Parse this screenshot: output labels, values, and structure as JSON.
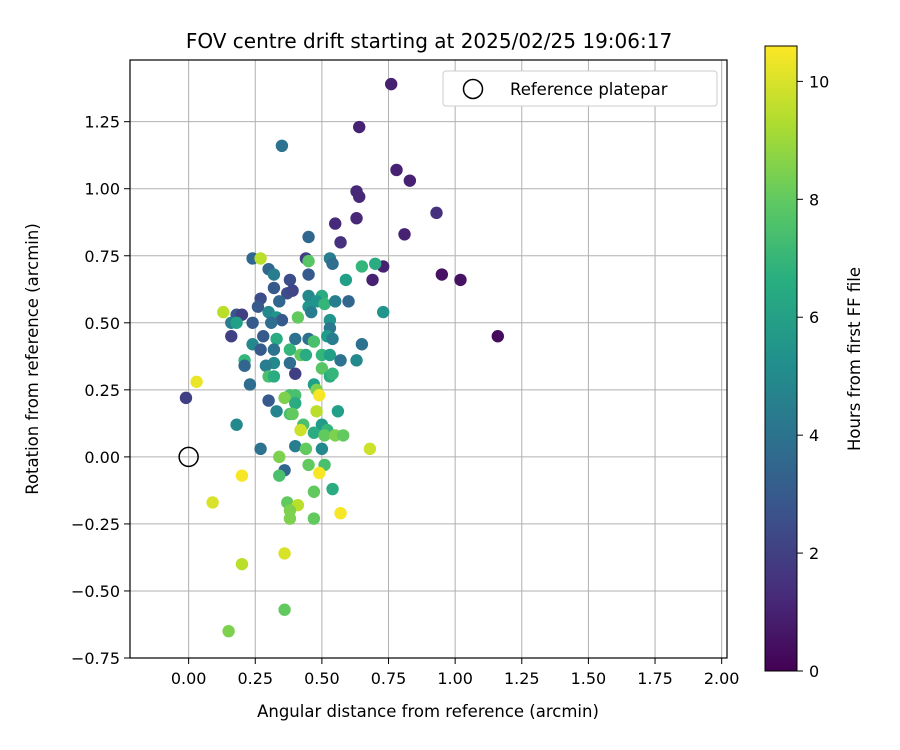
{
  "chart_data": {
    "type": "scatter",
    "title": "FOV centre drift starting at 2025/02/25 19:06:17",
    "xlabel": "Angular distance from reference (arcmin)",
    "ylabel": "Rotation from reference (arcmin)",
    "xlim": [
      -0.22,
      2.02
    ],
    "ylim": [
      -0.75,
      1.48
    ],
    "xticks": [
      "0.00",
      "0.25",
      "0.50",
      "0.75",
      "1.00",
      "1.25",
      "1.50",
      "1.75",
      "2.00"
    ],
    "yticks": [
      "−0.75",
      "−0.50",
      "−0.25",
      "0.00",
      "0.25",
      "0.50",
      "0.75",
      "1.00",
      "1.25"
    ],
    "xtick_values": [
      0,
      0.25,
      0.5,
      0.75,
      1.0,
      1.25,
      1.5,
      1.75,
      2.0
    ],
    "ytick_values": [
      -0.75,
      -0.5,
      -0.25,
      0,
      0.25,
      0.5,
      0.75,
      1.0,
      1.25
    ],
    "grid": true,
    "legend": {
      "placement": "top-right",
      "entries": [
        "Reference platepar"
      ]
    },
    "reference_point": {
      "x": 0.0,
      "y": 0.0
    },
    "colorbar": {
      "label": "Hours from first FF file",
      "min": 0,
      "max": 10.6,
      "ticks": [
        "0",
        "2",
        "4",
        "6",
        "8",
        "10"
      ],
      "tick_values": [
        0,
        2,
        4,
        6,
        8,
        10
      ],
      "colormap": "viridis"
    },
    "points": [
      {
        "x": 0.76,
        "y": 1.39,
        "h": 1.0
      },
      {
        "x": 0.64,
        "y": 1.23,
        "h": 1.0
      },
      {
        "x": 0.35,
        "y": 1.16,
        "h": 4.0
      },
      {
        "x": 0.78,
        "y": 1.07,
        "h": 1.0
      },
      {
        "x": 0.83,
        "y": 1.03,
        "h": 1.0
      },
      {
        "x": 0.63,
        "y": 0.99,
        "h": 1.2
      },
      {
        "x": 0.64,
        "y": 0.97,
        "h": 1.2
      },
      {
        "x": 0.93,
        "y": 0.91,
        "h": 1.5
      },
      {
        "x": 0.63,
        "y": 0.89,
        "h": 1.2
      },
      {
        "x": 0.55,
        "y": 0.87,
        "h": 1.3
      },
      {
        "x": 0.81,
        "y": 0.83,
        "h": 1.0
      },
      {
        "x": 0.45,
        "y": 0.82,
        "h": 3.5
      },
      {
        "x": 0.57,
        "y": 0.8,
        "h": 1.5
      },
      {
        "x": 0.24,
        "y": 0.74,
        "h": 3.5
      },
      {
        "x": 0.27,
        "y": 0.74,
        "h": 9.5
      },
      {
        "x": 0.44,
        "y": 0.74,
        "h": 2.0
      },
      {
        "x": 0.45,
        "y": 0.73,
        "h": 7.8
      },
      {
        "x": 0.53,
        "y": 0.74,
        "h": 4.5
      },
      {
        "x": 0.54,
        "y": 0.72,
        "h": 3.8
      },
      {
        "x": 0.73,
        "y": 0.71,
        "h": 1.0
      },
      {
        "x": 0.65,
        "y": 0.71,
        "h": 7.0
      },
      {
        "x": 0.7,
        "y": 0.72,
        "h": 6.5
      },
      {
        "x": 0.3,
        "y": 0.7,
        "h": 3.5
      },
      {
        "x": 0.32,
        "y": 0.68,
        "h": 4.5
      },
      {
        "x": 0.95,
        "y": 0.68,
        "h": 0.5
      },
      {
        "x": 0.45,
        "y": 0.68,
        "h": 3.0
      },
      {
        "x": 1.02,
        "y": 0.66,
        "h": 0.5
      },
      {
        "x": 0.38,
        "y": 0.66,
        "h": 2.5
      },
      {
        "x": 0.69,
        "y": 0.66,
        "h": 1.0
      },
      {
        "x": 0.59,
        "y": 0.66,
        "h": 6.0
      },
      {
        "x": 0.32,
        "y": 0.63,
        "h": 3.0
      },
      {
        "x": 0.37,
        "y": 0.61,
        "h": 2.5
      },
      {
        "x": 0.39,
        "y": 0.62,
        "h": 2.2
      },
      {
        "x": 0.5,
        "y": 0.6,
        "h": 6.5
      },
      {
        "x": 0.45,
        "y": 0.6,
        "h": 5.0
      },
      {
        "x": 0.48,
        "y": 0.58,
        "h": 5.5
      },
      {
        "x": 0.27,
        "y": 0.59,
        "h": 2.5
      },
      {
        "x": 0.51,
        "y": 0.57,
        "h": 7.0
      },
      {
        "x": 0.55,
        "y": 0.58,
        "h": 4.5
      },
      {
        "x": 0.6,
        "y": 0.58,
        "h": 3.5
      },
      {
        "x": 0.26,
        "y": 0.56,
        "h": 3.0
      },
      {
        "x": 0.34,
        "y": 0.58,
        "h": 3.5
      },
      {
        "x": 0.45,
        "y": 0.56,
        "h": 5.5
      },
      {
        "x": 0.73,
        "y": 0.54,
        "h": 5.5
      },
      {
        "x": 0.13,
        "y": 0.54,
        "h": 9.5
      },
      {
        "x": 0.18,
        "y": 0.53,
        "h": 2.8
      },
      {
        "x": 0.2,
        "y": 0.53,
        "h": 2.0
      },
      {
        "x": 0.3,
        "y": 0.54,
        "h": 5.0
      },
      {
        "x": 0.33,
        "y": 0.52,
        "h": 5.5
      },
      {
        "x": 0.35,
        "y": 0.51,
        "h": 3.0
      },
      {
        "x": 0.41,
        "y": 0.52,
        "h": 8.0
      },
      {
        "x": 0.46,
        "y": 0.54,
        "h": 4.5
      },
      {
        "x": 0.16,
        "y": 0.5,
        "h": 4.5
      },
      {
        "x": 0.18,
        "y": 0.5,
        "h": 6.0
      },
      {
        "x": 0.24,
        "y": 0.5,
        "h": 3.0
      },
      {
        "x": 0.31,
        "y": 0.5,
        "h": 3.8
      },
      {
        "x": 0.53,
        "y": 0.51,
        "h": 5.5
      },
      {
        "x": 0.53,
        "y": 0.48,
        "h": 4.2
      },
      {
        "x": 0.16,
        "y": 0.45,
        "h": 2.0
      },
      {
        "x": 0.28,
        "y": 0.45,
        "h": 3.0
      },
      {
        "x": 0.33,
        "y": 0.44,
        "h": 6.5
      },
      {
        "x": 0.4,
        "y": 0.44,
        "h": 4.0
      },
      {
        "x": 0.45,
        "y": 0.44,
        "h": 3.8
      },
      {
        "x": 0.47,
        "y": 0.43,
        "h": 7.5
      },
      {
        "x": 0.52,
        "y": 0.45,
        "h": 5.8
      },
      {
        "x": 0.54,
        "y": 0.44,
        "h": 4.5
      },
      {
        "x": 0.65,
        "y": 0.42,
        "h": 4.0
      },
      {
        "x": 0.24,
        "y": 0.42,
        "h": 5.0
      },
      {
        "x": 0.27,
        "y": 0.4,
        "h": 3.0
      },
      {
        "x": 0.32,
        "y": 0.4,
        "h": 4.0
      },
      {
        "x": 0.38,
        "y": 0.4,
        "h": 7.0
      },
      {
        "x": 0.42,
        "y": 0.38,
        "h": 8.0
      },
      {
        "x": 0.44,
        "y": 0.38,
        "h": 6.5
      },
      {
        "x": 0.5,
        "y": 0.38,
        "h": 7.0
      },
      {
        "x": 0.53,
        "y": 0.38,
        "h": 6.0
      },
      {
        "x": 0.21,
        "y": 0.36,
        "h": 7.0
      },
      {
        "x": 0.21,
        "y": 0.34,
        "h": 3.5
      },
      {
        "x": 0.32,
        "y": 0.35,
        "h": 5.0
      },
      {
        "x": 0.38,
        "y": 0.35,
        "h": 3.8
      },
      {
        "x": 0.29,
        "y": 0.34,
        "h": 4.5
      },
      {
        "x": 0.57,
        "y": 0.36,
        "h": 4.0
      },
      {
        "x": 0.63,
        "y": 0.36,
        "h": 5.0
      },
      {
        "x": 0.5,
        "y": 0.33,
        "h": 7.8
      },
      {
        "x": 0.4,
        "y": 0.31,
        "h": 2.0
      },
      {
        "x": 0.3,
        "y": 0.3,
        "h": 7.5
      },
      {
        "x": 0.32,
        "y": 0.3,
        "h": 6.5
      },
      {
        "x": 0.53,
        "y": 0.3,
        "h": 6.5
      },
      {
        "x": 0.54,
        "y": 0.31,
        "h": 7.0
      },
      {
        "x": 0.03,
        "y": 0.28,
        "h": 10.3
      },
      {
        "x": 0.23,
        "y": 0.27,
        "h": 3.8
      },
      {
        "x": 0.47,
        "y": 0.27,
        "h": 6.0
      },
      {
        "x": 0.48,
        "y": 0.25,
        "h": 8.5
      },
      {
        "x": 0.49,
        "y": 0.23,
        "h": 10.5
      },
      {
        "x": 0.38,
        "y": 0.23,
        "h": 7.5
      },
      {
        "x": 0.4,
        "y": 0.23,
        "h": 7.5
      },
      {
        "x": 0.36,
        "y": 0.22,
        "h": 8.5
      },
      {
        "x": -0.01,
        "y": 0.22,
        "h": 2.0
      },
      {
        "x": 0.3,
        "y": 0.21,
        "h": 3.0
      },
      {
        "x": 0.4,
        "y": 0.2,
        "h": 6.5
      },
      {
        "x": 0.56,
        "y": 0.17,
        "h": 6.0
      },
      {
        "x": 0.33,
        "y": 0.17,
        "h": 4.8
      },
      {
        "x": 0.38,
        "y": 0.16,
        "h": 7.5
      },
      {
        "x": 0.48,
        "y": 0.17,
        "h": 9.5
      },
      {
        "x": 0.39,
        "y": 0.16,
        "h": 8.0
      },
      {
        "x": 0.18,
        "y": 0.12,
        "h": 5.0
      },
      {
        "x": 0.43,
        "y": 0.12,
        "h": 7.5
      },
      {
        "x": 0.5,
        "y": 0.12,
        "h": 5.8
      },
      {
        "x": 0.52,
        "y": 0.1,
        "h": 7.0
      },
      {
        "x": 0.42,
        "y": 0.1,
        "h": 9.8
      },
      {
        "x": 0.47,
        "y": 0.09,
        "h": 6.5
      },
      {
        "x": 0.51,
        "y": 0.08,
        "h": 8.0
      },
      {
        "x": 0.55,
        "y": 0.08,
        "h": 8.5
      },
      {
        "x": 0.58,
        "y": 0.08,
        "h": 8.0
      },
      {
        "x": 0.4,
        "y": 0.04,
        "h": 4.5
      },
      {
        "x": 0.44,
        "y": 0.03,
        "h": 8.0
      },
      {
        "x": 0.27,
        "y": 0.03,
        "h": 4.0
      },
      {
        "x": 0.5,
        "y": 0.03,
        "h": 5.0
      },
      {
        "x": 0.68,
        "y": 0.03,
        "h": 9.8
      },
      {
        "x": 0.34,
        "y": 0.0,
        "h": 8.5
      },
      {
        "x": 0.45,
        "y": -0.03,
        "h": 8.0
      },
      {
        "x": 0.51,
        "y": -0.03,
        "h": 7.5
      },
      {
        "x": 0.36,
        "y": -0.05,
        "h": 3.5
      },
      {
        "x": 0.49,
        "y": -0.06,
        "h": 10.5
      },
      {
        "x": 0.34,
        "y": -0.07,
        "h": 7.5
      },
      {
        "x": 0.2,
        "y": -0.07,
        "h": 10.5
      },
      {
        "x": 0.47,
        "y": -0.13,
        "h": 8.0
      },
      {
        "x": 0.54,
        "y": -0.12,
        "h": 6.5
      },
      {
        "x": 0.37,
        "y": -0.17,
        "h": 8.0
      },
      {
        "x": 0.41,
        "y": -0.18,
        "h": 9.5
      },
      {
        "x": 0.09,
        "y": -0.17,
        "h": 10.0
      },
      {
        "x": 0.38,
        "y": -0.2,
        "h": 8.5
      },
      {
        "x": 0.38,
        "y": -0.23,
        "h": 8.5
      },
      {
        "x": 0.47,
        "y": -0.23,
        "h": 8.0
      },
      {
        "x": 0.57,
        "y": -0.21,
        "h": 10.5
      },
      {
        "x": 0.36,
        "y": -0.36,
        "h": 10.0
      },
      {
        "x": 0.2,
        "y": -0.4,
        "h": 9.5
      },
      {
        "x": 0.36,
        "y": -0.57,
        "h": 8.0
      },
      {
        "x": 0.15,
        "y": -0.65,
        "h": 8.5
      },
      {
        "x": 1.16,
        "y": 0.45,
        "h": 0.3
      }
    ]
  }
}
